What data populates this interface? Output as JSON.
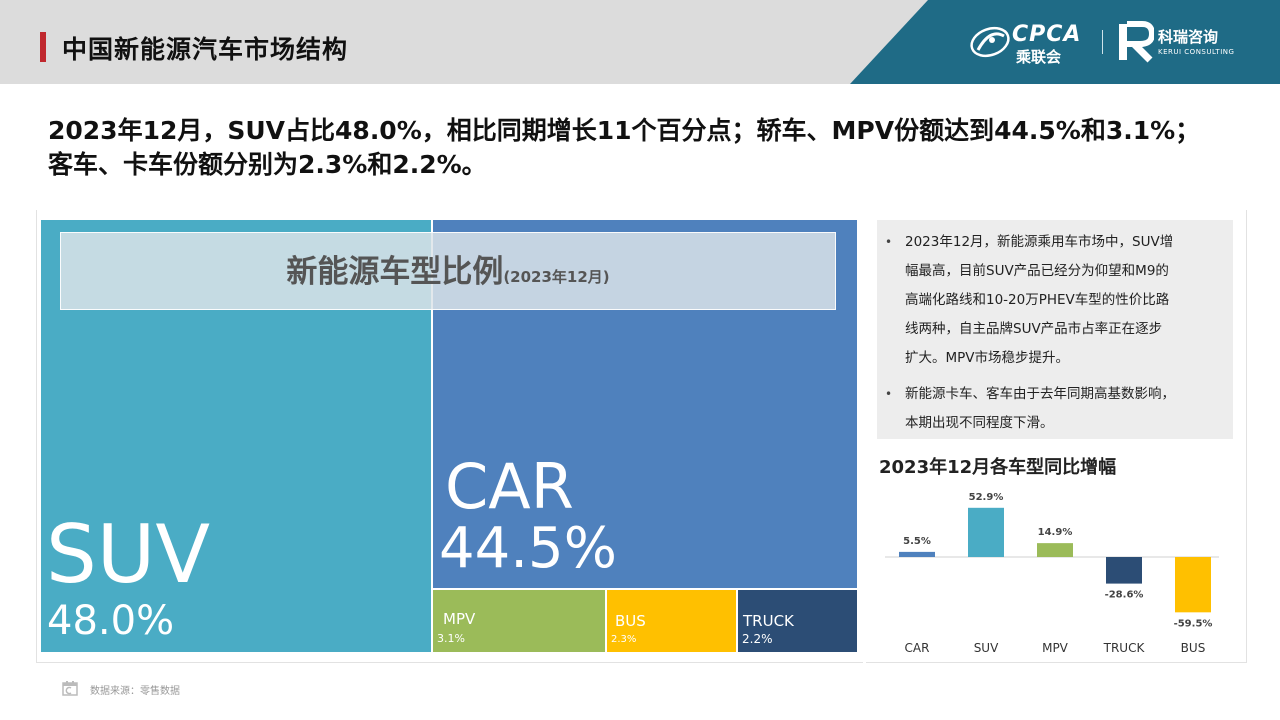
{
  "header": {
    "title": "中国新能源汽车市场结构",
    "logos": {
      "cpca_text": "CPCA",
      "cpca_cn": "乘联会",
      "kerui_cn": "科瑞咨询",
      "kerui_en": "KERUI CONSULTING"
    }
  },
  "headline": {
    "line1": "2023年12月，SUV占比48.0%，相比同期增长11个百分点；轿车、MPV份额达到44.5%和3.1%；",
    "line2": "客车、卡车份额分别为2.3%和2.2%。"
  },
  "notes": {
    "items": [
      {
        "lines": [
          "2023年12月，新能源乘用车市场中，SUV增",
          "幅最高，目前SUV产品已经分为仰望和M9的",
          "高端化路线和10-20万PHEV车型的性价比路",
          "线两种，自主品牌SUV产品市占率正在逐步",
          "扩大。MPV市场稳步提升。"
        ]
      },
      {
        "lines": [
          "新能源卡车、客车由于去年同期高基数影响，",
          "本期出现不同程度下滑。"
        ]
      }
    ]
  },
  "footer": {
    "source": "数据来源：零售数据"
  },
  "colors": {
    "suv": "#4aacc5",
    "car": "#4f81bd",
    "mpv": "#9bbb59",
    "bus": "#ffc000",
    "truck": "#2c4d75",
    "teal_header": "#1f6b86",
    "accent_red": "#c0282e"
  },
  "chart_data": [
    {
      "type": "treemap",
      "title": "新能源车型比例",
      "subtitle": "(2023年12月)",
      "items": [
        {
          "name": "SUV",
          "value": 48.0,
          "label": "48.0%"
        },
        {
          "name": "CAR",
          "value": 44.5,
          "label": "44.5%"
        },
        {
          "name": "MPV",
          "value": 3.1,
          "label": "3.1%"
        },
        {
          "name": "BUS",
          "value": 2.3,
          "label": "2.3%"
        },
        {
          "name": "TRUCK",
          "value": 2.2,
          "label": "2.2%"
        }
      ]
    },
    {
      "type": "bar",
      "title": "2023年12月各车型同比增幅",
      "categories": [
        "CAR",
        "SUV",
        "MPV",
        "TRUCK",
        "BUS"
      ],
      "values": [
        5.5,
        52.9,
        14.9,
        -28.6,
        -59.5
      ],
      "data_labels": [
        "5.5%",
        "52.9%",
        "14.9%",
        "-28.6%",
        "-59.5%"
      ],
      "colors": [
        "#4f81bd",
        "#4aacc5",
        "#9bbb59",
        "#2c4d75",
        "#ffc000"
      ],
      "ylim": [
        -65,
        60
      ],
      "grid": false
    }
  ]
}
